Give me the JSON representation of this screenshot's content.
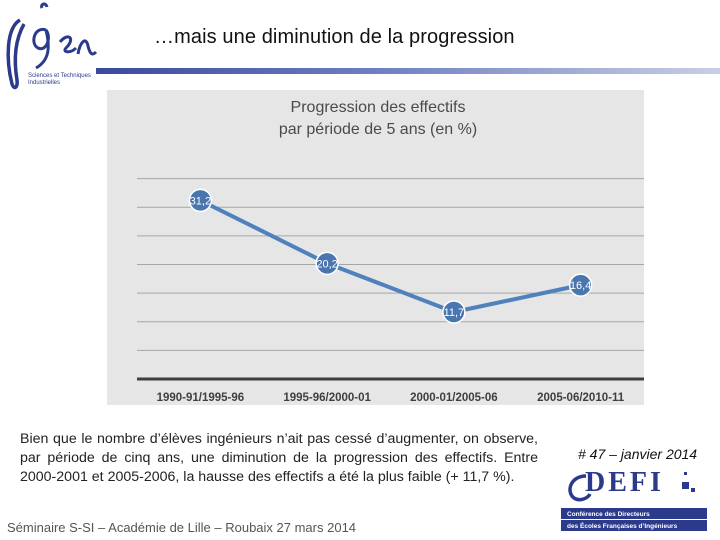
{
  "slide": {
    "title": "…mais une diminution de la progression",
    "logo_text": "igen",
    "logo_subtitle": "Sciences et Techniques Industrielles",
    "body_text": "Bien que le nombre d’élèves ingénieurs n’ait pas cessé d’augmenter, on observe, par période de cinq ans, une diminution de la progression des effectifs. Entre 2000-2001 et 2005-2006, la hausse des effectifs a été la plus faible (+ 11,7 %).",
    "footer": "Séminaire S-SI – Académie de Lille – Roubaix 27 mars 2014",
    "issue_label": "# 47 – janvier 2014",
    "partner_logo": {
      "name": "DEFI",
      "band_line1": "Conférence des Directeurs",
      "band_line2": "des Écoles Françaises d’Ingénieurs"
    }
  },
  "colors": {
    "accent": "#2c3a8c",
    "line": "#4f81bd",
    "chart_bg": "#e6e6e6",
    "chart_title": "#4a4a4a"
  },
  "chart_data": {
    "type": "line",
    "title_line1": "Progression des effectifs",
    "title_line2": "par période de 5 ans (en %)",
    "categories": [
      "1990-91/1995-96",
      "1995-96/2000-01",
      "2000-01/2005-06",
      "2005-06/2010-11"
    ],
    "values": [
      31.2,
      20.2,
      11.7,
      16.4
    ],
    "labels": [
      "31,2",
      "20,2",
      "11,7",
      "16,4"
    ],
    "ylim": [
      0,
      40
    ],
    "grid": true,
    "xlabel": "",
    "ylabel": ""
  }
}
